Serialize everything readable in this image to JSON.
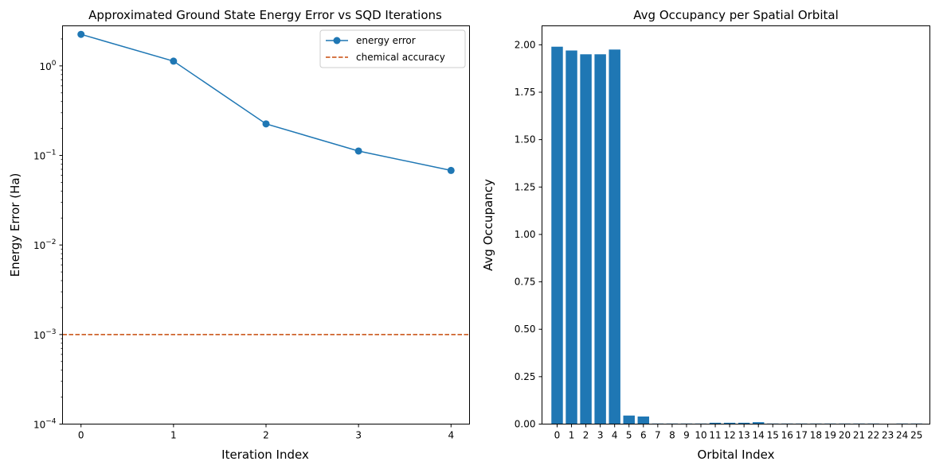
{
  "chart_data": [
    {
      "type": "line",
      "title": "Approximated Ground State Energy Error vs SQD Iterations",
      "xlabel": "Iteration Index",
      "ylabel": "Energy Error (Ha)",
      "yscale": "log",
      "ylim": [
        0.0001,
        2.8
      ],
      "xlim": [
        -0.2,
        4.2
      ],
      "xticks": [
        "0",
        "1",
        "2",
        "3",
        "4"
      ],
      "yticks": [
        {
          "base": "10",
          "exp": "0",
          "value": 1
        },
        {
          "base": "10",
          "exp": "−1",
          "value": 0.1
        },
        {
          "base": "10",
          "exp": "−2",
          "value": 0.01
        },
        {
          "base": "10",
          "exp": "−3",
          "value": 0.001
        },
        {
          "base": "10",
          "exp": "−4",
          "value": 0.0001
        }
      ],
      "series": [
        {
          "name": "energy error",
          "x": [
            0,
            1,
            2,
            3,
            4
          ],
          "values": [
            2.25,
            1.13,
            0.225,
            0.112,
            0.068
          ],
          "color": "#1f77b4",
          "marker": "circle"
        }
      ],
      "hlines": [
        {
          "name": "chemical accuracy",
          "value": 0.001,
          "color": "#c84a0a",
          "style": "dashed"
        }
      ],
      "legend": {
        "placement": "top-right",
        "entries": [
          "energy error",
          "chemical accuracy"
        ]
      },
      "grid": false
    },
    {
      "type": "bar",
      "title": "Avg Occupancy per Spatial Orbital",
      "xlabel": "Orbital Index",
      "ylabel": "Avg Occupancy",
      "ylim": [
        0,
        2.1
      ],
      "yticks": [
        "0.00",
        "0.25",
        "0.50",
        "0.75",
        "1.00",
        "1.25",
        "1.50",
        "1.75",
        "2.00"
      ],
      "categories": [
        "0",
        "1",
        "2",
        "3",
        "4",
        "5",
        "6",
        "7",
        "8",
        "9",
        "10",
        "11",
        "12",
        "13",
        "14",
        "15",
        "16",
        "17",
        "18",
        "19",
        "20",
        "21",
        "22",
        "23",
        "24",
        "25"
      ],
      "values": [
        1.99,
        1.97,
        1.95,
        1.95,
        1.975,
        0.045,
        0.04,
        0.003,
        0.003,
        0.003,
        0.003,
        0.007,
        0.007,
        0.007,
        0.01,
        0.003,
        0.003,
        0.003,
        0.003,
        0.003,
        0.003,
        0.003,
        0.003,
        0.0,
        0.003,
        0.003
      ],
      "color": "#1f77b4",
      "grid": false
    }
  ]
}
